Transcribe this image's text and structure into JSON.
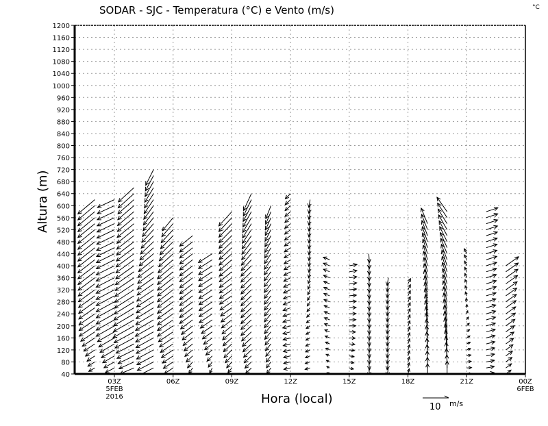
{
  "chart_data": {
    "type": "vector",
    "title": "SODAR - SJC - Temperatura (°C) e Vento (m/s)",
    "corner_unit": "°C",
    "xlabel": "Hora (local)",
    "ylabel": "Altura (m)",
    "xlim_hours": [
      0.95,
      24
    ],
    "ylim": [
      40,
      1200
    ],
    "y_ticks": [
      40,
      80,
      120,
      160,
      200,
      240,
      280,
      320,
      360,
      400,
      440,
      480,
      520,
      560,
      600,
      640,
      680,
      720,
      760,
      800,
      840,
      880,
      920,
      960,
      1000,
      1040,
      1080,
      1120,
      1160,
      1200
    ],
    "x_ticks": [
      {
        "hour": 3,
        "label": "03Z",
        "sub": [
          "5FEB",
          "2016"
        ]
      },
      {
        "hour": 6,
        "label": "06Z",
        "sub": []
      },
      {
        "hour": 9,
        "label": "09Z",
        "sub": []
      },
      {
        "hour": 12,
        "label": "12Z",
        "sub": []
      },
      {
        "hour": 15,
        "label": "15Z",
        "sub": []
      },
      {
        "hour": 18,
        "label": "18Z",
        "sub": []
      },
      {
        "hour": 21,
        "label": "21Z",
        "sub": []
      },
      {
        "hour": 24,
        "label": "00Z",
        "sub": [
          "6FEB"
        ]
      }
    ],
    "grid": true,
    "level_step_m": 20,
    "reference_vector": {
      "value": "10",
      "unit": "m/s"
    },
    "profiles_note": "keypoints [height_m, u_ms, v_ms], linearly interpolated per level",
    "columns": [
      {
        "hour": 2,
        "top": 620,
        "kp": [
          [
            40,
            -2,
            -1
          ],
          [
            100,
            -3,
            -2
          ],
          [
            200,
            -6,
            -4
          ],
          [
            400,
            -6.5,
            -5
          ],
          [
            620,
            -6.5,
            -5.5
          ]
        ]
      },
      {
        "hour": 3,
        "top": 620,
        "kp": [
          [
            40,
            -3,
            -1.5
          ],
          [
            120,
            -5,
            -3
          ],
          [
            200,
            -7,
            -4
          ],
          [
            400,
            -7,
            -3.5
          ],
          [
            620,
            -6.5,
            -3
          ]
        ]
      },
      {
        "hour": 4,
        "top": 660,
        "kp": [
          [
            40,
            -5,
            -2
          ],
          [
            200,
            -8,
            -4.5
          ],
          [
            400,
            -7,
            -5
          ],
          [
            660,
            -6,
            -5.5
          ]
        ]
      },
      {
        "hour": 5,
        "top": 720,
        "kp": [
          [
            40,
            -6,
            -3
          ],
          [
            200,
            -7,
            -4
          ],
          [
            400,
            -6,
            -4.5
          ],
          [
            560,
            -4,
            -5
          ],
          [
            720,
            -3,
            -6
          ]
        ]
      },
      {
        "hour": 6,
        "top": 570,
        "kp": [
          [
            40,
            -3,
            -2
          ],
          [
            200,
            -6,
            -4
          ],
          [
            400,
            -6,
            -5
          ],
          [
            570,
            -4,
            -5
          ]
        ]
      },
      {
        "hour": 7,
        "top": 500,
        "kp": [
          [
            40,
            -1,
            -2
          ],
          [
            120,
            -3,
            -2.5
          ],
          [
            240,
            -5,
            -3.7
          ],
          [
            500,
            -5,
            -4
          ]
        ]
      },
      {
        "hour": 8,
        "top": 440,
        "kp": [
          [
            40,
            -0.5,
            -2
          ],
          [
            120,
            -2.5,
            -2
          ],
          [
            240,
            -5,
            -3.4
          ],
          [
            440,
            -5.3,
            -3.4
          ]
        ]
      },
      {
        "hour": 9,
        "top": 580,
        "kp": [
          [
            40,
            -1,
            -1.5
          ],
          [
            120,
            -3,
            -3
          ],
          [
            300,
            -4.7,
            -3.2
          ],
          [
            580,
            -5,
            -5.5
          ]
        ]
      },
      {
        "hour": 10,
        "top": 640,
        "kp": [
          [
            40,
            -2,
            -2
          ],
          [
            200,
            -4,
            -3.7
          ],
          [
            400,
            -4,
            -4
          ],
          [
            640,
            -3,
            -6.5
          ]
        ]
      },
      {
        "hour": 11,
        "top": 600,
        "kp": [
          [
            40,
            -1.5,
            -2
          ],
          [
            200,
            -2.5,
            -3
          ],
          [
            400,
            -2.6,
            -3.5
          ],
          [
            600,
            -2,
            -5
          ]
        ]
      },
      {
        "hour": 12,
        "top": 655,
        "kp": [
          [
            40,
            -2.5,
            -0.5
          ],
          [
            200,
            -3,
            -0.8
          ],
          [
            400,
            -2.5,
            -1.5
          ],
          [
            655,
            -2,
            -2
          ]
        ]
      },
      {
        "hour": 13,
        "top": 634,
        "kp": [
          [
            40,
            -2,
            -0.5
          ],
          [
            200,
            -1.5,
            -1
          ],
          [
            400,
            -0.5,
            -2.5
          ],
          [
            634,
            -0.5,
            -3
          ]
        ]
      },
      {
        "hour": 14,
        "top": 433,
        "kp": [
          [
            40,
            -1,
            0.5
          ],
          [
            200,
            -2,
            0.8
          ],
          [
            433,
            -2.5,
            1
          ]
        ]
      },
      {
        "hour": 15,
        "top": 405,
        "kp": [
          [
            40,
            1.5,
            -0.5
          ],
          [
            200,
            2.5,
            0
          ],
          [
            405,
            3,
            0.5
          ]
        ]
      },
      {
        "hour": 16,
        "top": 450,
        "kp": [
          [
            40,
            0.3,
            -3
          ],
          [
            450,
            0.2,
            -3.5
          ]
        ]
      },
      {
        "hour": 17,
        "top": 360,
        "kp": [
          [
            40,
            -0.5,
            -3
          ],
          [
            360,
            -0.5,
            -3
          ]
        ]
      },
      {
        "hour": 18,
        "top": 350,
        "kp": [
          [
            40,
            0.5,
            2
          ],
          [
            350,
            1,
            2
          ]
        ]
      },
      {
        "hour": 19,
        "top": 550,
        "kp": [
          [
            40,
            0,
            4
          ],
          [
            200,
            -0.5,
            5
          ],
          [
            400,
            -1.5,
            5.5
          ],
          [
            550,
            -2.5,
            6
          ]
        ]
      },
      {
        "hour": 20,
        "top": 590,
        "kp": [
          [
            40,
            0,
            5
          ],
          [
            200,
            -1,
            5.5
          ],
          [
            400,
            -2,
            6
          ],
          [
            590,
            -4,
            5.5
          ]
        ]
      },
      {
        "hour": 21,
        "top": 455,
        "kp": [
          [
            40,
            2,
            0
          ],
          [
            200,
            1,
            1
          ],
          [
            300,
            -0.5,
            1.5
          ],
          [
            455,
            -1,
            2
          ]
        ]
      },
      {
        "hour": 22,
        "top": 593,
        "kp": [
          [
            40,
            3,
            0.5
          ],
          [
            200,
            3.5,
            1
          ],
          [
            593,
            4.5,
            1.5
          ]
        ]
      },
      {
        "hour": 23,
        "top": 410,
        "kp": [
          [
            40,
            2,
            1.5
          ],
          [
            200,
            3.5,
            2.5
          ],
          [
            410,
            5,
            3.5
          ]
        ]
      },
      {
        "hour": 24,
        "top": 160,
        "kp": [
          [
            40,
            1,
            1
          ],
          [
            160,
            1,
            1
          ]
        ]
      }
    ]
  }
}
